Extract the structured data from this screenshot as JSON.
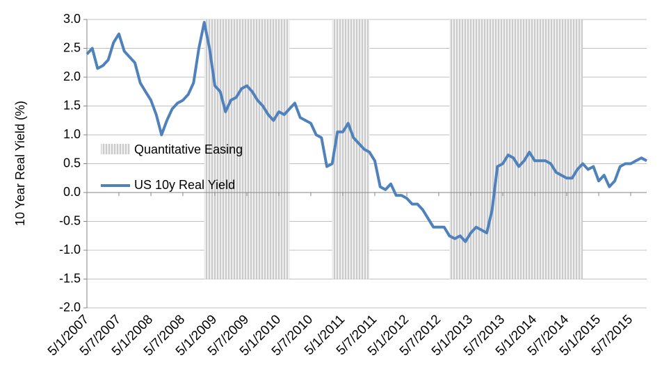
{
  "chart_data": {
    "type": "line",
    "y_label": "10 Year Real Yield (%)",
    "xticks": [
      "5/1/2007",
      "5/7/2007",
      "5/1/2008",
      "5/7/2008",
      "5/1/2009",
      "5/7/2009",
      "5/1/2010",
      "5/7/2010",
      "5/1/2011",
      "5/7/2011",
      "5/1/2012",
      "5/7/2012",
      "5/1/2013",
      "5/7/2013",
      "5/1/2014",
      "5/7/2014",
      "5/1/2015",
      "5/7/2015"
    ],
    "xlim": [
      "5/1/2007",
      "5/10/2015"
    ],
    "ylim": [
      -2,
      3
    ],
    "yticks": [
      {
        "value": 3,
        "label": "3.0"
      },
      2.5,
      {
        "value": 2,
        "label": "2.0"
      },
      1.5,
      {
        "value": 1,
        "label": "1.0"
      },
      0.5,
      {
        "value": 0,
        "label": "0.0"
      },
      -0.5,
      {
        "value": -1,
        "label": "-1.0"
      },
      -1.5,
      {
        "value": -2,
        "label": "-2.0"
      }
    ],
    "grid": true,
    "shaded_regions": {
      "name": "Quantitative Easing",
      "color": "#bfbfbf",
      "ylim": [
        -1.5,
        3
      ],
      "ranges": [
        [
          "5/11/2008",
          "5/3/2010"
        ],
        [
          "5/11/2010",
          "5/6/2011"
        ],
        [
          "5/9/2012",
          "5/10/2014"
        ]
      ]
    },
    "x": [
      "5/1/2007",
      "5/2/2007",
      "5/3/2007",
      "5/4/2007",
      "5/5/2007",
      "5/6/2007",
      "5/7/2007",
      "5/8/2007",
      "5/9/2007",
      "5/10/2007",
      "5/11/2007",
      "5/12/2007",
      "5/1/2008",
      "5/2/2008",
      "5/3/2008",
      "5/4/2008",
      "5/5/2008",
      "5/6/2008",
      "5/7/2008",
      "5/8/2008",
      "5/9/2008",
      "5/10/2008",
      "5/11/2008",
      "5/12/2008",
      "5/1/2009",
      "5/2/2009",
      "5/3/2009",
      "5/4/2009",
      "5/5/2009",
      "5/6/2009",
      "5/7/2009",
      "5/8/2009",
      "5/9/2009",
      "5/10/2009",
      "5/11/2009",
      "5/12/2009",
      "5/1/2010",
      "5/2/2010",
      "5/3/2010",
      "5/4/2010",
      "5/5/2010",
      "5/6/2010",
      "5/7/2010",
      "5/8/2010",
      "5/9/2010",
      "5/10/2010",
      "5/11/2010",
      "5/12/2010",
      "5/1/2011",
      "5/2/2011",
      "5/3/2011",
      "5/4/2011",
      "5/5/2011",
      "5/6/2011",
      "5/7/2011",
      "5/8/2011",
      "5/9/2011",
      "5/10/2011",
      "5/11/2011",
      "5/12/2011",
      "5/1/2012",
      "5/2/2012",
      "5/3/2012",
      "5/4/2012",
      "5/5/2012",
      "5/6/2012",
      "5/7/2012",
      "5/8/2012",
      "5/9/2012",
      "5/10/2012",
      "5/11/2012",
      "5/12/2012",
      "5/1/2013",
      "5/2/2013",
      "5/3/2013",
      "5/4/2013",
      "5/5/2013",
      "5/6/2013",
      "5/7/2013",
      "5/8/2013",
      "5/9/2013",
      "5/10/2013",
      "5/11/2013",
      "5/12/2013",
      "5/1/2014",
      "5/2/2014",
      "5/3/2014",
      "5/4/2014",
      "5/5/2014",
      "5/6/2014",
      "5/7/2014",
      "5/8/2014",
      "5/9/2014",
      "5/10/2014",
      "5/11/2014",
      "5/12/2014",
      "5/1/2015",
      "5/2/2015",
      "5/3/2015",
      "5/4/2015",
      "5/5/2015",
      "5/6/2015",
      "5/7/2015",
      "5/8/2015",
      "5/9/2015",
      "5/10/2015"
    ],
    "series": [
      {
        "name": "US 10y Real Yield",
        "color": "#4f81bd",
        "values": [
          2.4,
          2.5,
          2.15,
          2.2,
          2.3,
          2.6,
          2.75,
          2.45,
          2.35,
          2.25,
          1.9,
          1.75,
          1.6,
          1.35,
          1.0,
          1.25,
          1.45,
          1.55,
          1.6,
          1.7,
          1.9,
          2.5,
          2.95,
          2.5,
          1.85,
          1.75,
          1.4,
          1.6,
          1.65,
          1.8,
          1.85,
          1.75,
          1.6,
          1.5,
          1.35,
          1.25,
          1.4,
          1.35,
          1.45,
          1.55,
          1.3,
          1.25,
          1.2,
          1.0,
          0.95,
          0.45,
          0.5,
          1.05,
          1.05,
          1.2,
          0.95,
          0.85,
          0.75,
          0.7,
          0.55,
          0.1,
          0.05,
          0.15,
          -0.05,
          -0.05,
          -0.1,
          -0.2,
          -0.2,
          -0.3,
          -0.45,
          -0.6,
          -0.6,
          -0.6,
          -0.75,
          -0.8,
          -0.75,
          -0.85,
          -0.7,
          -0.6,
          -0.65,
          -0.7,
          -0.3,
          0.45,
          0.5,
          0.65,
          0.6,
          0.45,
          0.55,
          0.7,
          0.55,
          0.55,
          0.55,
          0.5,
          0.35,
          0.3,
          0.25,
          0.25,
          0.4,
          0.5,
          0.4,
          0.45,
          0.2,
          0.3,
          0.1,
          0.2,
          0.45,
          0.5,
          0.5,
          0.55,
          0.6,
          0.55
        ]
      }
    ],
    "legend": "inside-left"
  }
}
